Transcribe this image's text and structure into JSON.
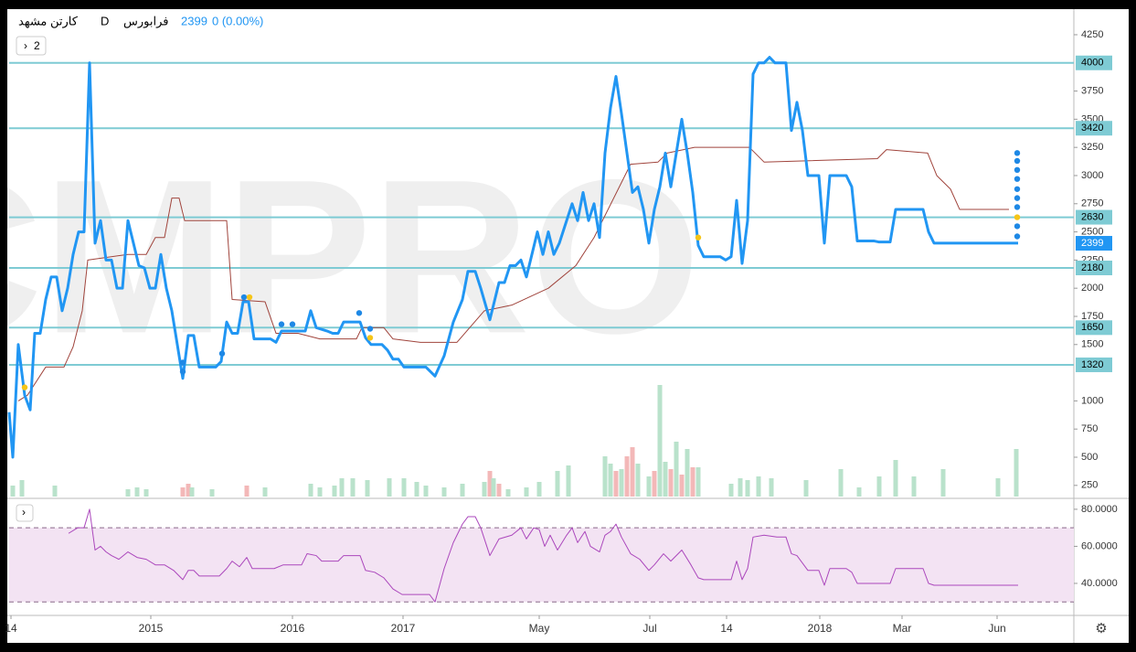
{
  "chart_data": [
    {
      "type": "line",
      "header": {
        "name": "کارتن مشهد",
        "interval": "D",
        "exchange": "فرابورس",
        "price": "2399",
        "change": "0 (0.00%)"
      },
      "button": "2",
      "watermark": "CMPRO",
      "xlim": [
        0,
        1165
      ],
      "xticks": [
        {
          "value": 2,
          "label": "14"
        },
        {
          "value": 155,
          "label": "2015"
        },
        {
          "value": 310,
          "label": "2016"
        },
        {
          "value": 431,
          "label": "2017"
        },
        {
          "value": 580,
          "label": "May"
        },
        {
          "value": 701,
          "label": "Jul"
        },
        {
          "value": 785,
          "label": "14"
        },
        {
          "value": 887,
          "label": "2018"
        },
        {
          "value": 977,
          "label": "Mar"
        },
        {
          "value": 1081,
          "label": "Jun"
        }
      ],
      "ylim": [
        151,
        4477
      ],
      "yticks": [
        250,
        500,
        750,
        1000,
        1500,
        1750,
        2000,
        2250,
        2500,
        2750,
        3000,
        3250,
        3500,
        3750,
        4250
      ],
      "levels": [
        4000,
        3420,
        2630,
        2180,
        1650,
        1320
      ],
      "level_color": "#7ecbd4",
      "last_price": 2399,
      "last_price_color": "#2196f3",
      "series": [
        {
          "name": "price",
          "color": "#2196f3",
          "x": [
            0,
            4,
            10,
            17,
            23,
            28,
            34,
            40,
            46,
            52,
            58,
            64,
            70,
            76,
            82,
            88,
            94,
            100,
            106,
            112,
            118,
            124,
            130,
            136,
            142,
            148,
            154,
            160,
            166,
            172,
            178,
            184,
            190,
            196,
            202,
            208,
            226,
            232,
            238,
            244,
            250,
            256,
            262,
            268,
            286,
            292,
            298,
            324,
            330,
            336,
            348,
            354,
            360,
            366,
            384,
            390,
            396,
            408,
            414,
            420,
            426,
            432,
            456,
            466,
            476,
            486,
            496,
            502,
            510,
            516,
            526,
            536,
            542,
            548,
            554,
            560,
            566,
            572,
            578,
            584,
            590,
            596,
            602,
            610,
            616,
            622,
            628,
            634,
            640,
            646,
            652,
            658,
            664,
            670,
            676,
            682,
            688,
            694,
            700,
            706,
            712,
            718,
            724,
            730,
            736,
            742,
            748,
            754,
            760,
            778,
            784,
            790,
            796,
            802,
            808,
            814,
            820,
            826,
            832,
            838,
            850,
            856,
            862,
            868,
            874,
            886,
            892,
            898,
            916,
            922,
            928,
            946,
            952,
            964,
            970,
            1000,
            1006,
            1012,
            1104
          ],
          "values": [
            900,
            500,
            1500,
            1050,
            920,
            1600,
            1600,
            1900,
            2100,
            2100,
            1800,
            2000,
            2300,
            2500,
            2500,
            4000,
            2400,
            2600,
            2250,
            2250,
            2000,
            2000,
            2600,
            2400,
            2200,
            2180,
            2000,
            2000,
            2300,
            2000,
            1800,
            1500,
            1200,
            1580,
            1580,
            1300,
            1300,
            1350,
            1700,
            1600,
            1600,
            1880,
            1880,
            1550,
            1550,
            1520,
            1620,
            1620,
            1800,
            1650,
            1620,
            1600,
            1600,
            1700,
            1700,
            1560,
            1500,
            1500,
            1450,
            1370,
            1370,
            1300,
            1300,
            1220,
            1400,
            1700,
            1900,
            2150,
            2150,
            2000,
            1720,
            2050,
            2050,
            2200,
            2200,
            2250,
            2100,
            2300,
            2500,
            2300,
            2500,
            2300,
            2400,
            2600,
            2750,
            2600,
            2850,
            2600,
            2750,
            2450,
            3200,
            3600,
            3880,
            3550,
            3200,
            2850,
            2900,
            2700,
            2400,
            2700,
            2900,
            3200,
            2900,
            3200,
            3500,
            3200,
            2850,
            2380,
            2280,
            2280,
            2250,
            2280,
            2780,
            2220,
            2600,
            3900,
            4000,
            4000,
            4050,
            4000,
            4000,
            3400,
            3650,
            3400,
            3000,
            3000,
            2400,
            3000,
            3000,
            2900,
            2420,
            2420,
            2410,
            2410,
            2700,
            2700,
            2500,
            2400,
            2400
          ]
        },
        {
          "name": "baseline",
          "color": "#a0443c",
          "x": [
            10,
            20,
            40,
            60,
            70,
            80,
            86,
            130,
            150,
            160,
            170,
            178,
            186,
            192,
            238,
            244,
            280,
            292,
            316,
            340,
            380,
            386,
            410,
            420,
            450,
            490,
            520,
            550,
            590,
            620,
            640,
            680,
            710,
            720,
            750,
            810,
            826,
            950,
            960,
            1005,
            1015,
            1030,
            1040,
            1094
          ],
          "values": [
            1000,
            1050,
            1300,
            1300,
            1480,
            1800,
            2250,
            2300,
            2300,
            2450,
            2450,
            2800,
            2800,
            2600,
            2600,
            1900,
            1880,
            1600,
            1600,
            1550,
            1550,
            1650,
            1650,
            1550,
            1520,
            1520,
            1800,
            1850,
            2000,
            2200,
            2450,
            3100,
            3120,
            3200,
            3250,
            3250,
            3120,
            3150,
            3230,
            3200,
            3000,
            2880,
            2700,
            2700
          ]
        }
      ],
      "signals": {
        "blue": "#1e88e5",
        "yellow": "#f5c518",
        "points": [
          {
            "x": 17,
            "value": 1120,
            "color": "yellow"
          },
          {
            "x": 190,
            "value": 1340,
            "color": "blue"
          },
          {
            "x": 190,
            "value": 1260,
            "color": "blue"
          },
          {
            "x": 233,
            "value": 1420,
            "color": "blue"
          },
          {
            "x": 257,
            "value": 1920,
            "color": "blue"
          },
          {
            "x": 263,
            "value": 1920,
            "color": "yellow"
          },
          {
            "x": 298,
            "value": 1680,
            "color": "blue"
          },
          {
            "x": 310,
            "value": 1680,
            "color": "blue"
          },
          {
            "x": 383,
            "value": 1780,
            "color": "blue"
          },
          {
            "x": 395,
            "value": 1640,
            "color": "blue"
          },
          {
            "x": 395,
            "value": 1560,
            "color": "yellow"
          },
          {
            "x": 754,
            "value": 2450,
            "color": "yellow"
          },
          {
            "x": 1103,
            "value": 3200,
            "color": "blue"
          },
          {
            "x": 1103,
            "value": 3130,
            "color": "blue"
          },
          {
            "x": 1103,
            "value": 3050,
            "color": "blue"
          },
          {
            "x": 1103,
            "value": 2970,
            "color": "blue"
          },
          {
            "x": 1103,
            "value": 2880,
            "color": "blue"
          },
          {
            "x": 1103,
            "value": 2800,
            "color": "blue"
          },
          {
            "x": 1103,
            "value": 2720,
            "color": "blue"
          },
          {
            "x": 1103,
            "value": 2630,
            "color": "yellow"
          },
          {
            "x": 1103,
            "value": 2550,
            "color": "blue"
          },
          {
            "x": 1103,
            "value": 2460,
            "color": "blue"
          }
        ]
      },
      "volume": {
        "up_color": "#b9e2cb",
        "down_color": "#f3b8b8",
        "x": [
          4,
          14,
          50,
          130,
          140,
          150,
          190,
          196,
          200,
          222,
          260,
          280,
          330,
          340,
          356,
          364,
          376,
          392,
          416,
          432,
          446,
          456,
          476,
          496,
          520,
          526,
          530,
          536,
          546,
          566,
          580,
          600,
          612,
          652,
          658,
          664,
          670,
          676,
          682,
          688,
          700,
          706,
          712,
          718,
          724,
          730,
          736,
          742,
          748,
          754,
          790,
          800,
          808,
          820,
          834,
          872,
          910,
          930,
          952,
          970,
          990,
          1022,
          1082,
          1102
        ],
        "values": [
          12,
          18,
          12,
          8,
          10,
          8,
          10,
          14,
          10,
          8,
          12,
          10,
          14,
          10,
          12,
          20,
          20,
          18,
          20,
          20,
          16,
          12,
          10,
          14,
          16,
          28,
          20,
          14,
          8,
          10,
          16,
          28,
          34,
          44,
          36,
          28,
          30,
          44,
          54,
          36,
          22,
          28,
          122,
          38,
          30,
          60,
          24,
          52,
          32,
          32,
          14,
          20,
          18,
          22,
          20,
          18,
          30,
          10,
          22,
          40,
          22,
          30,
          20,
          52
        ],
        "up": [
          true,
          true,
          true,
          true,
          true,
          true,
          false,
          false,
          true,
          true,
          false,
          true,
          true,
          true,
          true,
          true,
          true,
          true,
          true,
          true,
          true,
          true,
          true,
          true,
          true,
          false,
          true,
          false,
          true,
          true,
          true,
          true,
          true,
          true,
          true,
          false,
          true,
          false,
          false,
          true,
          true,
          false,
          true,
          true,
          false,
          true,
          false,
          true,
          false,
          true,
          true,
          true,
          true,
          true,
          true,
          true,
          true,
          true,
          true,
          true,
          true,
          true,
          true,
          true
        ]
      }
    },
    {
      "type": "line",
      "name": "RSI",
      "xlim": [
        0,
        1165
      ],
      "ylim": [
        23.2,
        84.4
      ],
      "yticks": [
        {
          "value": 80,
          "label": "80.0000"
        },
        {
          "value": 60,
          "label": "60.0000"
        },
        {
          "value": 40,
          "label": "40.0000"
        }
      ],
      "bands": [
        30,
        70
      ],
      "band_color": "#f3e3f3",
      "series": [
        {
          "name": "RSI",
          "color": "#ab47bc",
          "x": [
            65,
            75,
            82,
            88,
            94,
            100,
            106,
            112,
            120,
            130,
            140,
            150,
            160,
            170,
            180,
            190,
            196,
            202,
            208,
            230,
            238,
            244,
            252,
            260,
            266,
            290,
            300,
            320,
            326,
            336,
            342,
            360,
            366,
            384,
            390,
            400,
            410,
            420,
            430,
            460,
            466,
            476,
            486,
            496,
            502,
            510,
            516,
            526,
            536,
            550,
            560,
            566,
            574,
            580,
            586,
            592,
            600,
            610,
            616,
            622,
            630,
            636,
            646,
            652,
            658,
            664,
            670,
            680,
            690,
            700,
            706,
            716,
            724,
            736,
            746,
            754,
            760,
            790,
            796,
            802,
            808,
            814,
            826,
            840,
            850,
            856,
            862,
            874,
            886,
            892,
            898,
            916,
            922,
            928,
            964,
            970,
            1000,
            1006,
            1012,
            1104
          ],
          "values": [
            67,
            70,
            70,
            80,
            58,
            60,
            57,
            55,
            53,
            57,
            54,
            53,
            50,
            50,
            47,
            42,
            47,
            47,
            44,
            44,
            48,
            52,
            49,
            54,
            48,
            48,
            50,
            50,
            56,
            55,
            52,
            52,
            55,
            55,
            47,
            46,
            43,
            37,
            34,
            34,
            30,
            48,
            62,
            72,
            76,
            76,
            70,
            55,
            64,
            66,
            70,
            64,
            70,
            69,
            60,
            66,
            58,
            66,
            70,
            62,
            68,
            60,
            57,
            66,
            68,
            72,
            65,
            56,
            53,
            47,
            50,
            56,
            52,
            58,
            50,
            43,
            42,
            42,
            52,
            42,
            48,
            65,
            66,
            65,
            65,
            56,
            55,
            47,
            47,
            39,
            48,
            48,
            46,
            40,
            40,
            48,
            48,
            40,
            39,
            39
          ]
        }
      ]
    }
  ]
}
